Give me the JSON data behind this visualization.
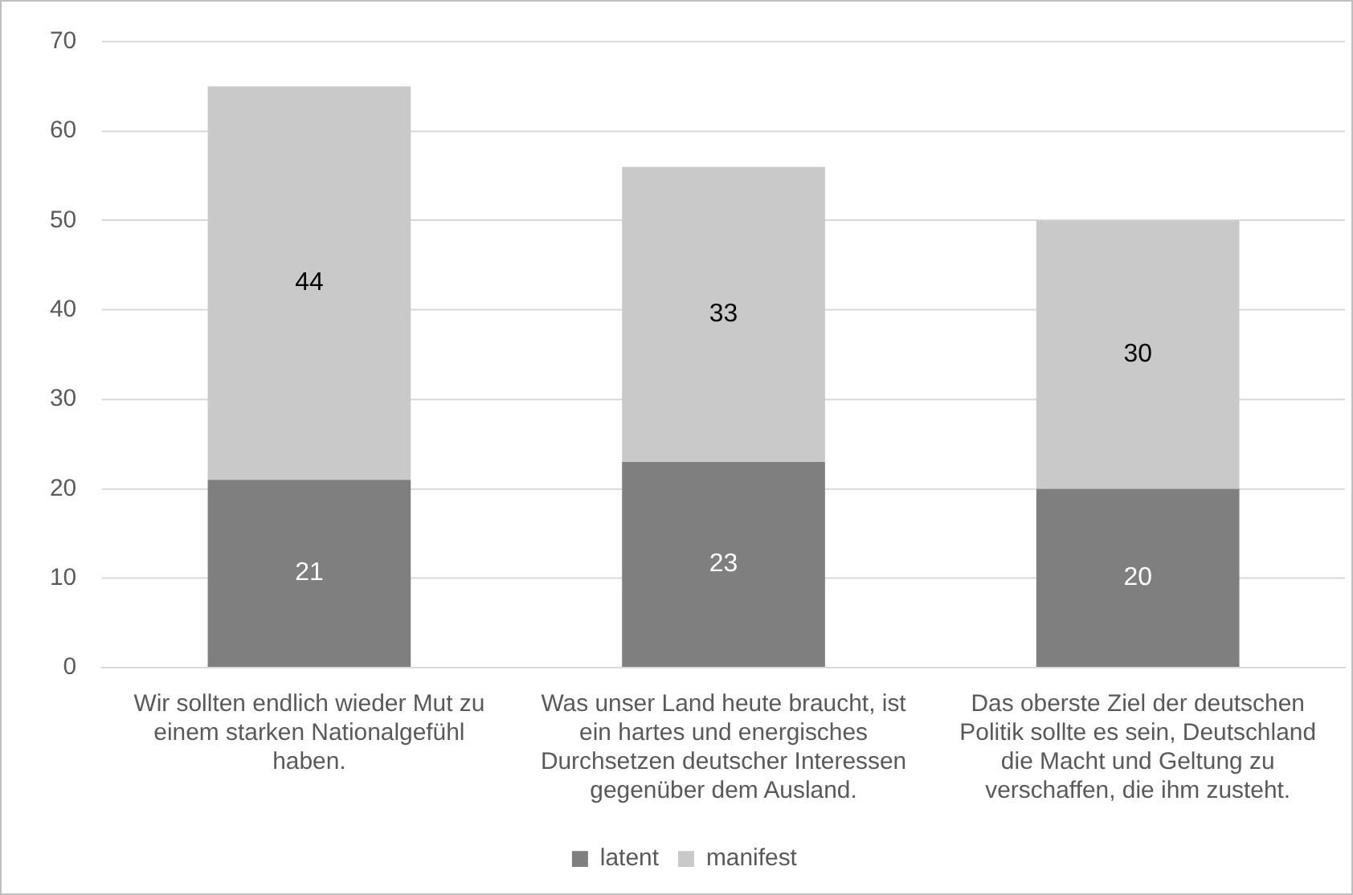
{
  "chart_data": {
    "type": "bar",
    "stacked": true,
    "categories": [
      "Wir sollten endlich wieder Mut zu einem starken Nationalgefühl haben.",
      "Was unser Land heute braucht, ist ein hartes und energisches Durchsetzen deutscher Interessen gegenüber dem Ausland.",
      "Das oberste Ziel der deutschen Politik sollte es sein, Deutschland die Macht und Geltung zu verschaffen, die ihm zusteht."
    ],
    "series": [
      {
        "name": "latent",
        "color": "#7f7f7f",
        "values": [
          21,
          23,
          20
        ]
      },
      {
        "name": "manifest",
        "color": "#c9c9c9",
        "values": [
          44,
          33,
          30
        ]
      }
    ],
    "ylim": [
      0,
      70
    ],
    "yticks": [
      0,
      10,
      20,
      30,
      40,
      50,
      60,
      70
    ],
    "grid": "y",
    "legend": "bottom",
    "data_labels": true
  }
}
